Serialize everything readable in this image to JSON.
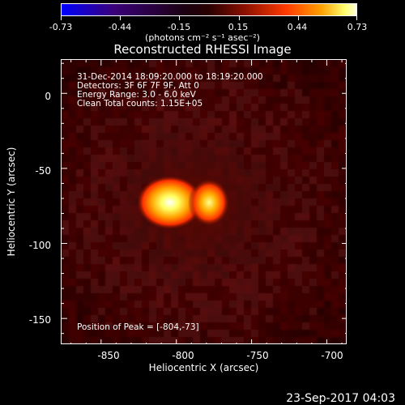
{
  "colorbar": {
    "tick_labels": [
      "-0.73",
      "-0.44",
      "-0.15",
      "0.15",
      "0.44",
      "0.73"
    ],
    "units": "(photons cm⁻² s⁻¹ asec⁻²)",
    "colors": [
      "#0000ff",
      "#3b0070",
      "#000000",
      "#7a0f00",
      "#ff3300",
      "#ff9900",
      "#ffff88",
      "#ffffff"
    ]
  },
  "title": "Reconstructed RHESSI Image",
  "info": {
    "time_range": "31-Dec-2014 18:09:20.000 to 18:19:20.000",
    "detectors": "Detectors: 3F 6F 7F 9F, Att 0",
    "energy": "Energy Range: 3.0 - 6.0 keV",
    "clean_counts": "Clean    Total counts: 1.15E+05",
    "peak": "Position of Peak = [-804,-73]"
  },
  "axes": {
    "xlabel": "Heliocentric X (arcsec)",
    "ylabel": "Heliocentric Y (arcsec)",
    "x_tick_labels": [
      "-850",
      "-800",
      "-750",
      "-700"
    ],
    "y_tick_labels": [
      "0",
      "-50",
      "-100",
      "-150"
    ],
    "xlim": [
      -876,
      -686
    ],
    "ylim": [
      -168,
      22
    ]
  },
  "image": {
    "sources": [
      {
        "x": -804,
        "y": -73,
        "amplitude": 0.73
      },
      {
        "x": -778,
        "y": -73,
        "amplitude": 0.55
      }
    ]
  },
  "datestamp": "23-Sep-2017 04:03"
}
